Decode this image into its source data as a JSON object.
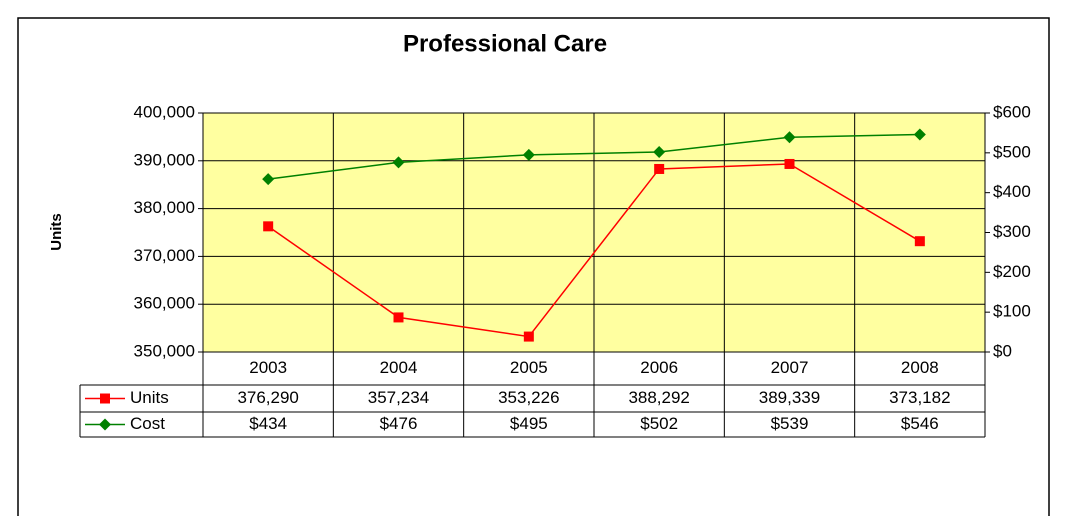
{
  "chart_data": {
    "type": "line",
    "title": "Professional Care",
    "y_label": "Units",
    "categories": [
      "2003",
      "2004",
      "2005",
      "2006",
      "2007",
      "2008"
    ],
    "series": [
      {
        "name": "Units",
        "color": "#ff0000",
        "marker": "square",
        "axis": "y",
        "values": [
          376290,
          357234,
          353226,
          388292,
          389339,
          373182
        ],
        "value_labels": [
          "376,290",
          "357,234",
          "353,226",
          "388,292",
          "389,339",
          "373,182"
        ]
      },
      {
        "name": "Cost",
        "color": "#008000",
        "marker": "diamond",
        "axis": "y2",
        "values": [
          434,
          476,
          495,
          502,
          539,
          546
        ],
        "value_labels": [
          "$434",
          "$476",
          "$495",
          "$502",
          "$539",
          "$546"
        ]
      }
    ],
    "ylim": [
      350000,
      400000
    ],
    "yticks": [
      {
        "value": 350000,
        "label": "350,000"
      },
      {
        "value": 360000,
        "label": "360,000"
      },
      {
        "value": 370000,
        "label": "370,000"
      },
      {
        "value": 380000,
        "label": "380,000"
      },
      {
        "value": 390000,
        "label": "390,000"
      },
      {
        "value": 400000,
        "label": "400,000"
      }
    ],
    "y2lim": [
      0,
      600
    ],
    "y2ticks": [
      {
        "value": 0,
        "label": "$0"
      },
      {
        "value": 100,
        "label": "$100"
      },
      {
        "value": 200,
        "label": "$200"
      },
      {
        "value": 300,
        "label": "$300"
      },
      {
        "value": 400,
        "label": "$400"
      },
      {
        "value": 500,
        "label": "$500"
      },
      {
        "value": 600,
        "label": "$600"
      }
    ],
    "grid": true,
    "plot_background": "#ffffa0"
  }
}
